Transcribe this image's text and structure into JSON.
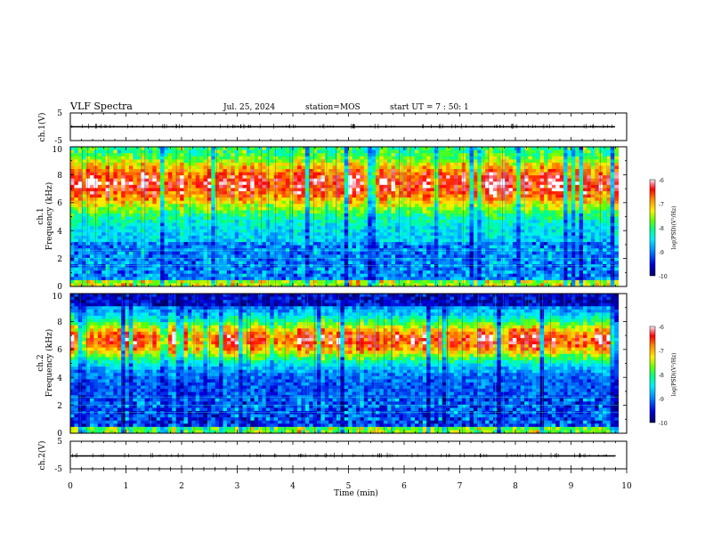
{
  "header": {
    "title": "VLF Spectra",
    "date": "Jul. 25, 2024",
    "station": "station=MOS",
    "start": "start UT =   7 : 50: 1"
  },
  "colors": {
    "spectro_scale": [
      "#000066",
      "#0000cc",
      "#0055ff",
      "#00bbff",
      "#00ffbb",
      "#33ff33",
      "#bbff00",
      "#ffee00",
      "#ff9900",
      "#ff3300",
      "#ff0000",
      "#ff88aa",
      "#ffffff"
    ]
  },
  "chart_data": [
    {
      "type": "line",
      "name": "ch1-waveform",
      "ylabel": "ch.1(V)",
      "ytick_labels": [
        "5",
        "-5"
      ],
      "ylim": [
        -5,
        5
      ],
      "xlim": [
        0,
        10
      ],
      "baseline": 0
    },
    {
      "type": "heatmap",
      "name": "ch1-spectrogram",
      "ylabel_channel": "ch.1",
      "ylabel": "Frequency (kHz)",
      "ytick_labels": [
        "0",
        "2",
        "4",
        "6",
        "8",
        "10"
      ],
      "ylim": [
        0,
        10
      ],
      "xlim": [
        0,
        10
      ],
      "data_end_min": 9.85,
      "peak_band_khz": [
        5.2,
        9.5
      ],
      "colorbar": {
        "label": "log(PSD)(V²/Hz)",
        "tick_labels": [
          "-6",
          "-7",
          "-8",
          "-9",
          "-10"
        ]
      }
    },
    {
      "type": "heatmap",
      "name": "ch2-spectrogram",
      "ylabel_channel": "ch.2",
      "ylabel": "Frequency (kHz)",
      "ytick_labels": [
        "0",
        "2",
        "4",
        "6",
        "8",
        "10"
      ],
      "ylim": [
        0,
        10
      ],
      "xlim": [
        0,
        10
      ],
      "data_end_min": 9.85,
      "peak_band_khz": [
        5.0,
        8.3
      ],
      "colorbar": {
        "label": "log(PSD)(V²/Hz)",
        "tick_labels": [
          "-6",
          "-7",
          "-8",
          "-9",
          "-10"
        ]
      }
    },
    {
      "type": "line",
      "name": "ch2-waveform",
      "ylabel": "ch.2(V)",
      "ytick_labels": [
        "5",
        "-5"
      ],
      "ylim": [
        -5,
        5
      ],
      "xlim": [
        0,
        10
      ],
      "baseline": 0,
      "xlabel": "Time (min)",
      "xtick_labels": [
        "0",
        "1",
        "2",
        "3",
        "4",
        "5",
        "6",
        "7",
        "8",
        "9",
        "10"
      ]
    }
  ]
}
